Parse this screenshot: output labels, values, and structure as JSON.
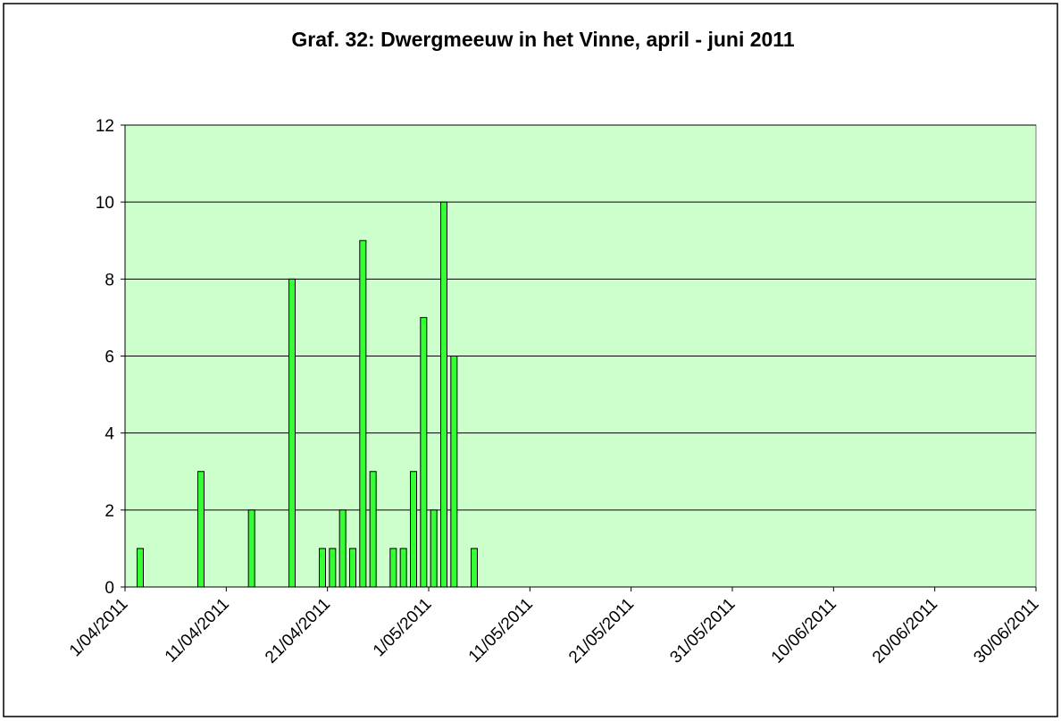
{
  "chart_data": {
    "type": "bar",
    "title": "Graf. 32: Dwergmeeuw in het Vinne, april - juni 2011",
    "x": [
      "2/04/2011",
      "8/04/2011",
      "13/04/2011",
      "17/04/2011",
      "20/04/2011",
      "21/04/2011",
      "22/04/2011",
      "23/04/2011",
      "24/04/2011",
      "25/04/2011",
      "27/04/2011",
      "28/04/2011",
      "29/04/2011",
      "30/04/2011",
      "1/05/2011",
      "2/05/2011",
      "3/05/2011",
      "5/05/2011"
    ],
    "values": [
      1,
      3,
      2,
      8,
      1,
      1,
      2,
      1,
      9,
      3,
      1,
      1,
      3,
      7,
      2,
      10,
      6,
      1
    ],
    "color": "#33ff33",
    "xlim": [
      "1/04/2011",
      "30/06/2011"
    ],
    "xticks": [
      "1/04/2011",
      "11/04/2011",
      "21/04/2011",
      "1/05/2011",
      "11/05/2011",
      "21/05/2011",
      "31/05/2011",
      "10/06/2011",
      "20/06/2011",
      "30/06/2011"
    ],
    "ylim": [
      0,
      12
    ],
    "yticks": [
      0,
      2,
      4,
      6,
      8,
      10,
      12
    ],
    "grid": true,
    "background": "#ccffcc"
  }
}
